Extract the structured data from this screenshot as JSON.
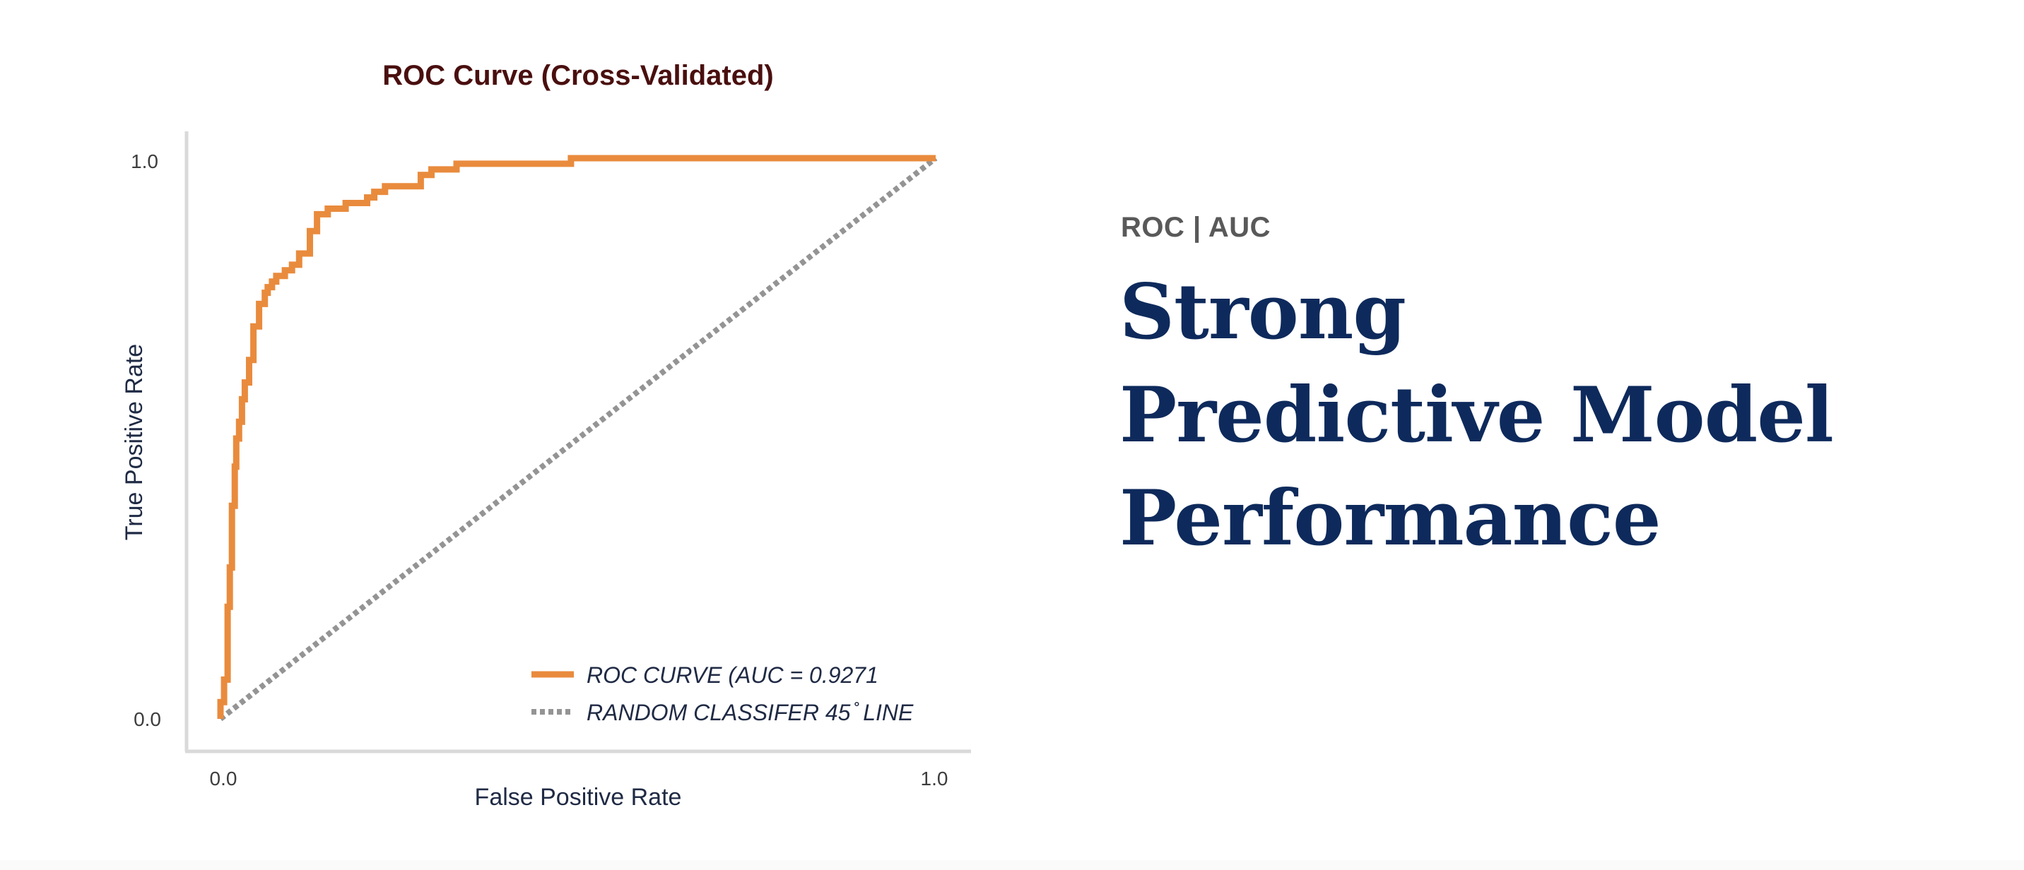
{
  "headline_panel": {
    "kicker": "ROC | AUC",
    "lines": [
      "Strong",
      "Predictive Model",
      "Performance"
    ]
  },
  "colors": {
    "roc_curve": "#e98b3d",
    "random_line": "#949494",
    "title": "#4a0f0f",
    "headline": "#0e2a5c",
    "kicker": "#595959",
    "axis": "#d9d9d9",
    "axis_text": "#3d3d3d",
    "legend_text": "#1f2a44"
  },
  "chart_data": {
    "type": "line",
    "title": "ROC Curve (Cross-Validated)",
    "xlabel": "False Positive Rate",
    "ylabel": "True Positive Rate",
    "xlim": [
      0,
      1
    ],
    "ylim": [
      0,
      1
    ],
    "x_ticks": [
      "0.0",
      "1.0"
    ],
    "y_ticks": [
      "0.0",
      "1.0"
    ],
    "grid": false,
    "legend_position": "bottom-right",
    "series": [
      {
        "name": "ROC CURVE (AUC = 0.9271",
        "style": "solid",
        "x": [
          0.0,
          0.0,
          0.005,
          0.005,
          0.01,
          0.01,
          0.013,
          0.013,
          0.016,
          0.016,
          0.02,
          0.02,
          0.022,
          0.022,
          0.026,
          0.026,
          0.03,
          0.03,
          0.034,
          0.034,
          0.04,
          0.04,
          0.046,
          0.046,
          0.054,
          0.054,
          0.062,
          0.062,
          0.066,
          0.066,
          0.072,
          0.072,
          0.078,
          0.078,
          0.09,
          0.09,
          0.1,
          0.1,
          0.11,
          0.11,
          0.125,
          0.125,
          0.135,
          0.135,
          0.15,
          0.15,
          0.175,
          0.175,
          0.205,
          0.205,
          0.215,
          0.215,
          0.23,
          0.23,
          0.28,
          0.28,
          0.295,
          0.295,
          0.33,
          0.33,
          0.49,
          0.49,
          1.0
        ],
        "y": [
          0.0,
          0.03,
          0.03,
          0.07,
          0.07,
          0.2,
          0.2,
          0.27,
          0.27,
          0.38,
          0.38,
          0.45,
          0.45,
          0.5,
          0.5,
          0.53,
          0.53,
          0.57,
          0.57,
          0.6,
          0.6,
          0.64,
          0.64,
          0.7,
          0.7,
          0.74,
          0.74,
          0.76,
          0.76,
          0.77,
          0.77,
          0.78,
          0.78,
          0.79,
          0.79,
          0.8,
          0.8,
          0.81,
          0.81,
          0.83,
          0.83,
          0.87,
          0.87,
          0.9,
          0.9,
          0.91,
          0.91,
          0.92,
          0.92,
          0.93,
          0.93,
          0.94,
          0.94,
          0.95,
          0.95,
          0.97,
          0.97,
          0.98,
          0.98,
          0.99,
          0.99,
          1.0,
          1.0
        ]
      },
      {
        "name": "RANDOM CLASSIFER 45 ̊ LINE",
        "style": "dotted",
        "x": [
          0.0,
          1.0
        ],
        "y": [
          0.0,
          1.0
        ]
      }
    ]
  }
}
